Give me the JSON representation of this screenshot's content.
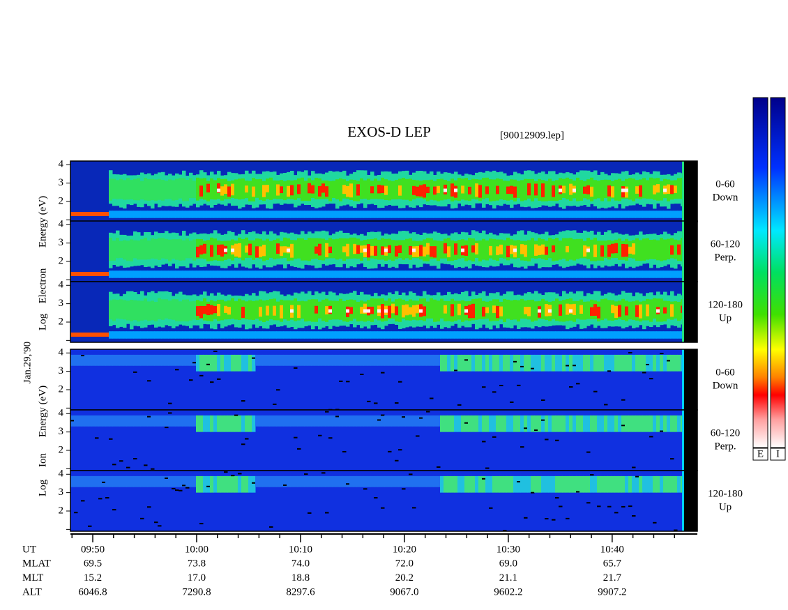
{
  "chart_data": {
    "type": "spectrogram",
    "title": "EXOS-D LEP",
    "file": "[90012909.lep]",
    "date": "Jan.29,'90",
    "groups": [
      {
        "species": "electron",
        "ylabel": [
          "Log",
          "Electron",
          "Energy (eV)"
        ],
        "panels": [
          {
            "label": [
              "0-60",
              "Down"
            ]
          },
          {
            "label": [
              "60-120",
              "Perp."
            ]
          },
          {
            "label": [
              "120-180",
              "Up"
            ]
          }
        ]
      },
      {
        "species": "ion",
        "ylabel": [
          "Log",
          "Ion",
          "Energy (eV)"
        ],
        "panels": [
          {
            "label": [
              "0-60",
              "Down"
            ]
          },
          {
            "label": [
              "60-120",
              "Perp."
            ]
          },
          {
            "label": [
              "120-180",
              "Up"
            ]
          }
        ]
      }
    ],
    "ylim": [
      0.9,
      4.2
    ],
    "yticks": [
      2,
      3,
      4
    ],
    "yminor_ticks": [
      1
    ],
    "xlim": [
      587.85,
      648.2
    ],
    "xticks": [
      {
        "value": 590,
        "label": "09:50"
      },
      {
        "value": 600,
        "label": "10:00"
      },
      {
        "value": 610,
        "label": "10:10"
      },
      {
        "value": 620,
        "label": "10:20"
      },
      {
        "value": 630,
        "label": "10:30"
      },
      {
        "value": 640,
        "label": "10:40"
      }
    ],
    "xminor_ticks": [
      588,
      592,
      594,
      596,
      598,
      602,
      604,
      606,
      608,
      612,
      614,
      616,
      618,
      622,
      624,
      626,
      628,
      632,
      634,
      636,
      638,
      642,
      644,
      646
    ],
    "ut_label": "UT",
    "ephemeris": [
      {
        "name": "MLAT",
        "values": [
          "69.5",
          "73.8",
          "74.0",
          "72.0",
          "69.0",
          "65.7"
        ]
      },
      {
        "name": "MLT",
        "values": [
          "15.2",
          "17.0",
          "18.8",
          "20.2",
          "21.1",
          "21.7"
        ]
      },
      {
        "name": "ALT",
        "values": [
          "6046.8",
          "7290.8",
          "8297.6",
          "9067.0",
          "9602.2",
          "9907.2"
        ]
      }
    ],
    "colorbars": [
      "E",
      "I"
    ]
  }
}
